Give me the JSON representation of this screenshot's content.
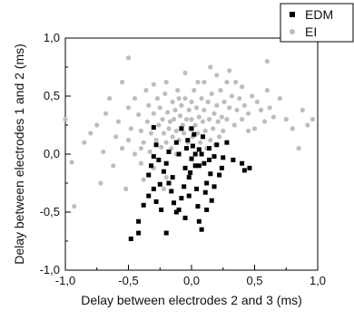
{
  "chart_data": {
    "type": "scatter",
    "xlabel": "Delay between electrodes 2 and 3 (ms)",
    "ylabel": "Delay between electrodes 1 and 2 (ms)",
    "xlim": [
      -1.0,
      1.0
    ],
    "ylim": [
      -1.0,
      1.0
    ],
    "xticks": [
      "-1,0",
      "-0,5",
      "0,0",
      "0,5",
      "1,0"
    ],
    "yticks": [
      "-1,0",
      "-0,5",
      "0,0",
      "0,5",
      "1,0"
    ],
    "grid": false,
    "legend_position": "top-right",
    "series": [
      {
        "name": "EDM",
        "marker": "square",
        "color": "#000000",
        "points": [
          [
            -0.48,
            -0.73
          ],
          [
            -0.42,
            -0.68
          ],
          [
            -0.42,
            -0.58
          ],
          [
            -0.38,
            -0.44
          ],
          [
            -0.34,
            -0.36
          ],
          [
            -0.3,
            -0.3
          ],
          [
            -0.28,
            -0.41
          ],
          [
            -0.34,
            -0.18
          ],
          [
            -0.32,
            -0.1
          ],
          [
            -0.3,
            -0.02
          ],
          [
            -0.28,
            0.08
          ],
          [
            -0.3,
            0.23
          ],
          [
            -0.26,
            -0.05
          ],
          [
            -0.22,
            -0.15
          ],
          [
            -0.2,
            -0.08
          ],
          [
            -0.18,
            0.02
          ],
          [
            -0.18,
            -0.25
          ],
          [
            -0.16,
            -0.32
          ],
          [
            -0.14,
            -0.42
          ],
          [
            -0.12,
            -0.5
          ],
          [
            -0.1,
            -0.48
          ],
          [
            -0.2,
            -0.68
          ],
          [
            -0.08,
            -0.38
          ],
          [
            -0.06,
            -0.28
          ],
          [
            -0.05,
            -0.12
          ],
          [
            -0.04,
            0.05
          ],
          [
            -0.03,
            0.12
          ],
          [
            -0.02,
            -0.2
          ],
          [
            0.0,
            -0.04
          ],
          [
            0.01,
            0.07
          ],
          [
            0.02,
            0.17
          ],
          [
            0.03,
            -0.1
          ],
          [
            0.04,
            -0.3
          ],
          [
            0.05,
            -0.45
          ],
          [
            0.06,
            -0.1
          ],
          [
            0.08,
            0.0
          ],
          [
            0.09,
            0.15
          ],
          [
            0.1,
            -0.08
          ],
          [
            0.11,
            -0.33
          ],
          [
            0.12,
            -0.48
          ],
          [
            0.14,
            0.05
          ],
          [
            0.15,
            -0.17
          ],
          [
            0.16,
            -0.4
          ],
          [
            0.18,
            -0.02
          ],
          [
            0.2,
            0.08
          ],
          [
            0.22,
            -0.18
          ],
          [
            0.24,
            -0.12
          ],
          [
            0.25,
            -0.03
          ],
          [
            0.28,
            0.1
          ],
          [
            0.33,
            -0.05
          ],
          [
            0.4,
            -0.08
          ],
          [
            0.46,
            -0.12
          ],
          [
            0.42,
            -0.14
          ],
          [
            -0.1,
            0.0
          ],
          [
            -0.12,
            0.1
          ],
          [
            -0.08,
            0.22
          ],
          [
            0.0,
            0.22
          ],
          [
            -0.15,
            -0.2
          ],
          [
            -0.25,
            -0.26
          ],
          [
            0.06,
            -0.58
          ],
          [
            0.08,
            -0.65
          ],
          [
            -0.02,
            -0.36
          ],
          [
            0.12,
            -0.25
          ],
          [
            0.18,
            -0.28
          ],
          [
            -0.05,
            -0.55
          ],
          [
            -0.24,
            -0.48
          ],
          [
            0.03,
            0.0
          ],
          [
            0.06,
            0.04
          ],
          [
            -0.01,
            -0.16
          ],
          [
            0.14,
            -0.05
          ]
        ]
      },
      {
        "name": "EI",
        "marker": "circle",
        "color": "#bdbdbd",
        "points": [
          [
            -0.93,
            -0.45
          ],
          [
            -1.0,
            0.3
          ],
          [
            -0.95,
            -0.07
          ],
          [
            -0.85,
            0.1
          ],
          [
            -0.8,
            0.18
          ],
          [
            -0.75,
            0.25
          ],
          [
            -0.72,
            -0.25
          ],
          [
            -0.7,
            0.02
          ],
          [
            -0.68,
            0.35
          ],
          [
            -0.65,
            0.48
          ],
          [
            -0.62,
            -0.1
          ],
          [
            -0.6,
            0.15
          ],
          [
            -0.58,
            0.28
          ],
          [
            -0.55,
            0.05
          ],
          [
            -0.55,
            0.62
          ],
          [
            -0.52,
            -0.3
          ],
          [
            -0.5,
            0.12
          ],
          [
            -0.5,
            0.4
          ],
          [
            -0.48,
            0.22
          ],
          [
            -0.45,
            0.48
          ],
          [
            -0.45,
            0.0
          ],
          [
            -0.42,
            0.34
          ],
          [
            -0.4,
            -0.08
          ],
          [
            -0.4,
            0.2
          ],
          [
            -0.38,
            0.1
          ],
          [
            -0.36,
            0.55
          ],
          [
            -0.35,
            0.28
          ],
          [
            -0.34,
            0.42
          ],
          [
            -0.33,
            0.02
          ],
          [
            -0.32,
            0.18
          ],
          [
            -0.3,
            0.6
          ],
          [
            -0.3,
            0.35
          ],
          [
            -0.28,
            0.12
          ],
          [
            -0.27,
            0.48
          ],
          [
            -0.26,
            0.25
          ],
          [
            -0.25,
            0.4
          ],
          [
            -0.24,
            0.06
          ],
          [
            -0.23,
            0.3
          ],
          [
            -0.22,
            0.18
          ],
          [
            -0.21,
            0.52
          ],
          [
            -0.2,
            0.1
          ],
          [
            -0.19,
            0.36
          ],
          [
            -0.18,
            0.22
          ],
          [
            -0.17,
            0.28
          ],
          [
            -0.16,
            0.05
          ],
          [
            -0.15,
            0.45
          ],
          [
            -0.15,
            0.15
          ],
          [
            -0.14,
            0.3
          ],
          [
            -0.13,
            0.38
          ],
          [
            -0.12,
            0.2
          ],
          [
            -0.11,
            0.55
          ],
          [
            -0.1,
            0.12
          ],
          [
            -0.09,
            0.33
          ],
          [
            -0.08,
            0.42
          ],
          [
            -0.07,
            0.25
          ],
          [
            -0.06,
            0.18
          ],
          [
            -0.05,
            0.48
          ],
          [
            -0.04,
            0.3
          ],
          [
            -0.03,
            0.1
          ],
          [
            -0.02,
            0.38
          ],
          [
            -0.01,
            0.22
          ],
          [
            0.0,
            0.45
          ],
          [
            0.0,
            0.3
          ],
          [
            0.01,
            0.15
          ],
          [
            0.02,
            0.55
          ],
          [
            0.03,
            0.25
          ],
          [
            0.04,
            0.4
          ],
          [
            0.05,
            0.18
          ],
          [
            0.06,
            0.32
          ],
          [
            0.07,
            0.1
          ],
          [
            0.08,
            0.48
          ],
          [
            0.09,
            0.28
          ],
          [
            0.1,
            0.38
          ],
          [
            0.11,
            0.2
          ],
          [
            0.12,
            0.05
          ],
          [
            0.13,
            0.45
          ],
          [
            0.14,
            0.3
          ],
          [
            0.15,
            0.12
          ],
          [
            0.16,
            0.52
          ],
          [
            0.17,
            0.22
          ],
          [
            0.18,
            0.35
          ],
          [
            0.19,
            0.08
          ],
          [
            0.2,
            0.42
          ],
          [
            0.21,
            0.28
          ],
          [
            0.22,
            0.15
          ],
          [
            0.23,
            0.55
          ],
          [
            0.24,
            0.32
          ],
          [
            0.25,
            0.2
          ],
          [
            0.26,
            0.45
          ],
          [
            0.28,
            0.3
          ],
          [
            0.3,
            0.4
          ],
          [
            0.32,
            0.5
          ],
          [
            0.34,
            0.25
          ],
          [
            0.36,
            0.38
          ],
          [
            0.38,
            0.48
          ],
          [
            0.4,
            0.3
          ],
          [
            0.42,
            0.42
          ],
          [
            0.45,
            0.35
          ],
          [
            0.48,
            0.5
          ],
          [
            0.5,
            0.22
          ],
          [
            0.52,
            0.45
          ],
          [
            0.55,
            0.38
          ],
          [
            0.58,
            0.28
          ],
          [
            0.6,
            0.55
          ],
          [
            0.62,
            0.4
          ],
          [
            0.65,
            0.32
          ],
          [
            0.7,
            0.48
          ],
          [
            0.75,
            0.3
          ],
          [
            0.8,
            0.22
          ],
          [
            0.85,
            0.05
          ],
          [
            0.88,
            0.38
          ],
          [
            0.92,
            0.25
          ],
          [
            0.96,
            0.3
          ],
          [
            -0.5,
            0.83
          ],
          [
            -0.1,
            0.48
          ],
          [
            0.2,
            0.68
          ],
          [
            0.35,
            0.62
          ],
          [
            0.6,
            0.8
          ],
          [
            0.3,
            0.72
          ],
          [
            -0.2,
            -0.2
          ],
          [
            -0.3,
            -0.12
          ],
          [
            -0.38,
            -0.22
          ],
          [
            -0.22,
            -0.3
          ],
          [
            -0.12,
            0.0
          ],
          [
            -0.4,
            0.05
          ],
          [
            -0.2,
            0.62
          ],
          [
            0.05,
            0.62
          ],
          [
            0.15,
            0.75
          ],
          [
            0.45,
            0.2
          ],
          [
            0.28,
            0.62
          ],
          [
            -0.05,
            0.7
          ],
          [
            0.4,
            0.58
          ],
          [
            0.1,
            0.62
          ]
        ]
      }
    ]
  }
}
